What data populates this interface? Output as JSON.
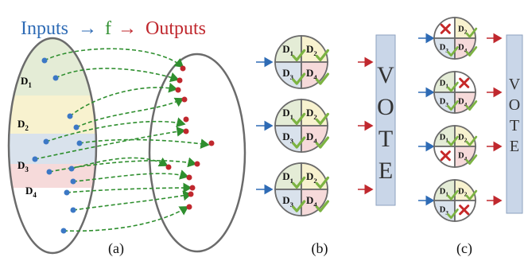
{
  "header": {
    "inputs": "Inputs",
    "arrow": "→",
    "f": "f",
    "outputs": "Outputs"
  },
  "domains": [
    "D",
    "D",
    "D",
    "D"
  ],
  "subscripts": [
    "1",
    "2",
    "3",
    "4"
  ],
  "vote": [
    "V",
    "O",
    "T",
    "E"
  ],
  "captions": [
    "(a)",
    "(b)",
    "(c)"
  ],
  "colors": {
    "inputs": "#2e6bb5",
    "f": "#2f8f2f",
    "outputs": "#c0282e",
    "d1": "#e4ecd6",
    "d2": "#f8f2cf",
    "d3": "#d9e2ec",
    "d4": "#f6dada",
    "vote_box": "#c9d6e8",
    "check": "#7cb342",
    "cross": "#c62828"
  },
  "icons": [
    "check-icon",
    "cross-icon",
    "arrow-right-icon"
  ]
}
